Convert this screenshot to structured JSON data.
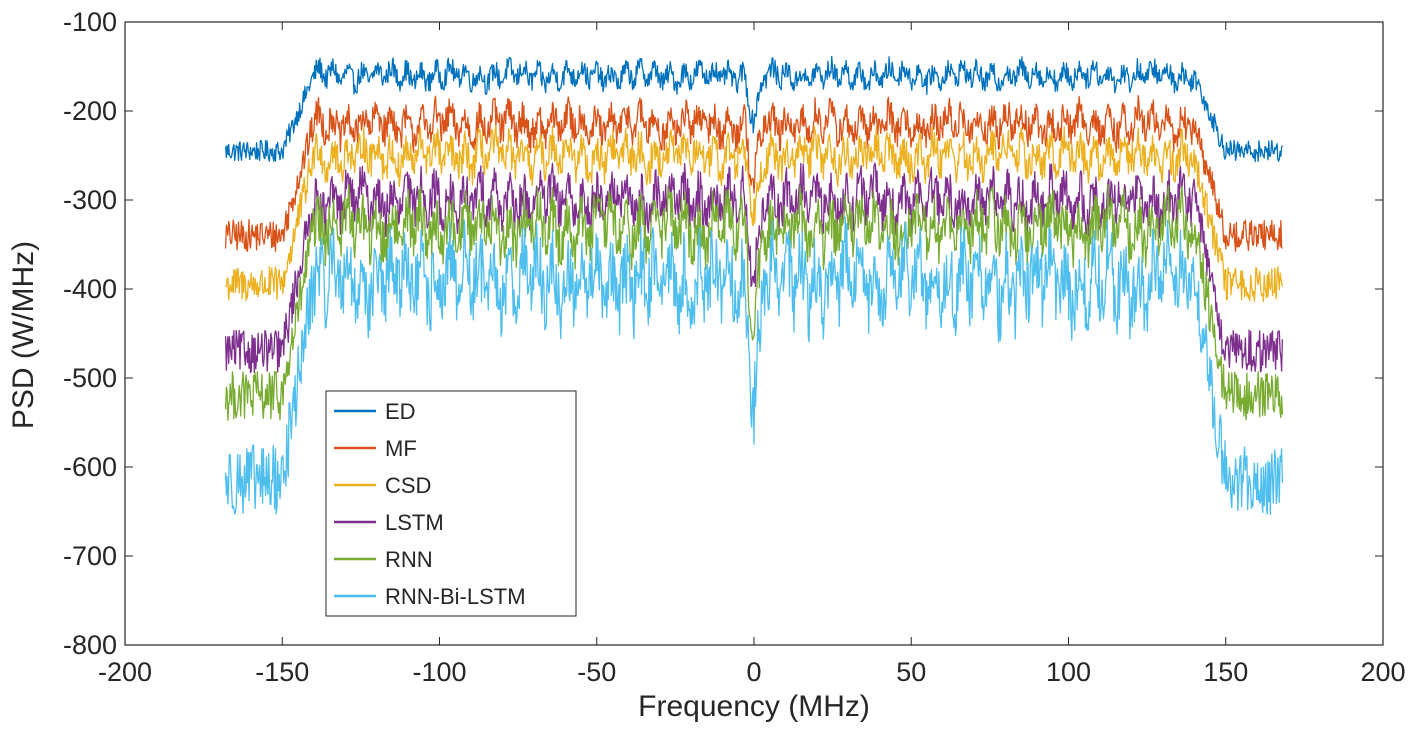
{
  "chart_data": {
    "type": "line",
    "title": "",
    "xlabel": "Frequency (MHz)",
    "ylabel": "PSD (W/MHz)",
    "xlim": [
      -200,
      200
    ],
    "ylim": [
      -800,
      -100
    ],
    "xticks": [
      -200,
      -150,
      -100,
      -50,
      0,
      50,
      100,
      150,
      200
    ],
    "yticks": [
      -800,
      -700,
      -600,
      -500,
      -400,
      -300,
      -200,
      -100
    ],
    "xtick_labels": [
      "-200",
      "-150",
      "-100",
      "-50",
      "0",
      "50",
      "100",
      "150",
      "200"
    ],
    "ytick_labels": [
      "-800",
      "-700",
      "-600",
      "-500",
      "-400",
      "-300",
      "-200",
      "-100"
    ],
    "grid": false,
    "legend_position": "bottom-left",
    "x_range_data": [
      -168,
      168
    ],
    "band_edges_MHz": [
      -140,
      140
    ],
    "series": [
      {
        "name": "ED",
        "color": "#0072BD",
        "in_band_level": -160,
        "out_band_level": -245,
        "notch_depth": -215,
        "noise": 12
      },
      {
        "name": "MF",
        "color": "#D95319",
        "in_band_level": -215,
        "out_band_level": -340,
        "notch_depth": -285,
        "noise": 18
      },
      {
        "name": "CSD",
        "color": "#EDB120",
        "in_band_level": -250,
        "out_band_level": -395,
        "notch_depth": -320,
        "noise": 20
      },
      {
        "name": "LSTM",
        "color": "#7E2F8E",
        "in_band_level": -300,
        "out_band_level": -470,
        "notch_depth": -400,
        "noise": 24
      },
      {
        "name": "RNN",
        "color": "#77AC30",
        "in_band_level": -330,
        "out_band_level": -520,
        "notch_depth": -440,
        "noise": 28
      },
      {
        "name": "RNN-Bi-LSTM",
        "color": "#4DBEEE",
        "in_band_level": -390,
        "out_band_level": -615,
        "notch_depth": -530,
        "noise": 40
      }
    ]
  }
}
